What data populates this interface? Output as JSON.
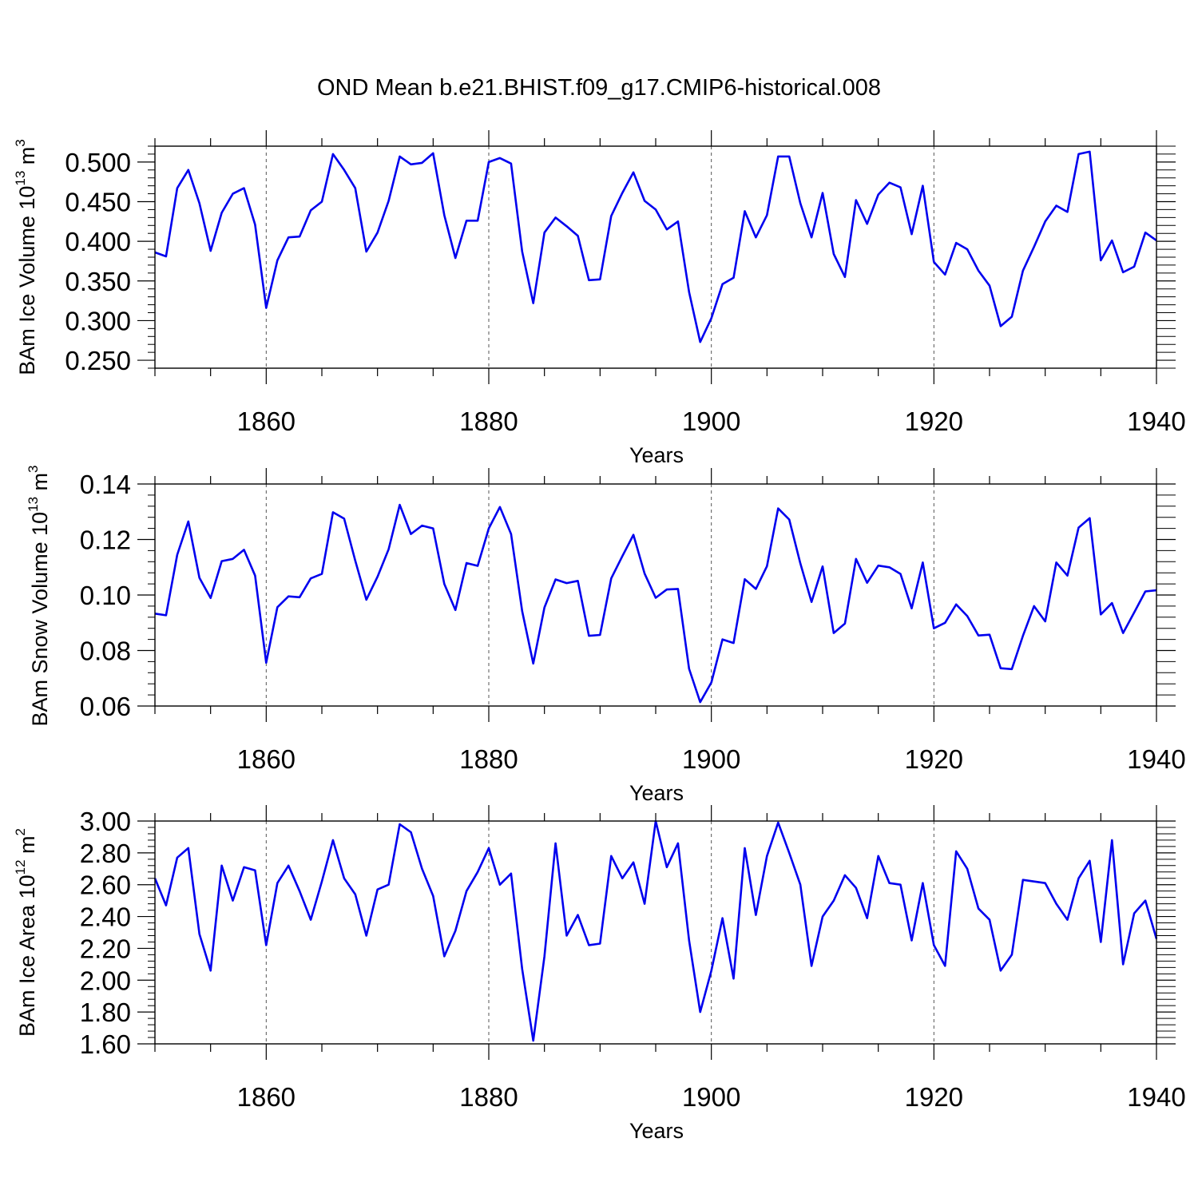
{
  "figure_title": "OND Mean b.e21.BHIST.f09_g17.CMIP6-historical.008",
  "colors": {
    "line": "#0000ee",
    "axis": "#000000",
    "grid": "#555555",
    "background": "#ffffff"
  },
  "chart_data": [
    {
      "type": "line",
      "id": "ice-volume",
      "ylabel_parts": {
        "base": "BAm Ice Volume 10",
        "exp1": "13",
        "mid": " m",
        "exp2": "3"
      },
      "xlabel": "Years",
      "xlim": [
        1850,
        1940
      ],
      "ylim": [
        0.24,
        0.52
      ],
      "yticks": [
        0.25,
        0.3,
        0.35,
        0.4,
        0.45,
        0.5
      ],
      "ytick_labels": [
        "0.250",
        "0.300",
        "0.350",
        "0.400",
        "0.450",
        "0.500"
      ],
      "xticks": [
        1860,
        1880,
        1900,
        1920,
        1940
      ],
      "xtick_labels": [
        "1860",
        "1880",
        "1900",
        "1920",
        "1940"
      ],
      "start_year": 1850,
      "values": [
        0.386,
        0.381,
        0.467,
        0.49,
        0.448,
        0.388,
        0.436,
        0.46,
        0.467,
        0.421,
        0.316,
        0.376,
        0.405,
        0.406,
        0.439,
        0.45,
        0.51,
        0.49,
        0.467,
        0.387,
        0.411,
        0.451,
        0.507,
        0.497,
        0.499,
        0.511,
        0.433,
        0.379,
        0.426,
        0.426,
        0.5,
        0.505,
        0.498,
        0.387,
        0.322,
        0.411,
        0.43,
        0.419,
        0.407,
        0.351,
        0.352,
        0.432,
        0.461,
        0.487,
        0.451,
        0.44,
        0.415,
        0.425,
        0.336,
        0.273,
        0.303,
        0.346,
        0.354,
        0.438,
        0.405,
        0.433,
        0.507,
        0.507,
        0.448,
        0.405,
        0.461,
        0.384,
        0.355,
        0.452,
        0.422,
        0.459,
        0.474,
        0.468,
        0.409,
        0.47,
        0.374,
        0.358,
        0.398,
        0.39,
        0.363,
        0.344,
        0.293,
        0.305,
        0.363,
        0.393,
        0.425,
        0.445,
        0.437,
        0.51,
        0.513,
        0.376,
        0.401,
        0.361,
        0.368,
        0.411,
        0.401
      ]
    },
    {
      "type": "line",
      "id": "snow-volume",
      "ylabel_parts": {
        "base": "BAm Snow Volume 10",
        "exp1": "13",
        "mid": " m",
        "exp2": "3"
      },
      "xlabel": "Years",
      "xlim": [
        1850,
        1940
      ],
      "ylim": [
        0.06,
        0.14
      ],
      "yticks": [
        0.06,
        0.08,
        0.1,
        0.12,
        0.14
      ],
      "ytick_labels": [
        "0.06",
        "0.08",
        "0.10",
        "0.12",
        "0.14"
      ],
      "xticks": [
        1860,
        1880,
        1900,
        1920,
        1940
      ],
      "xtick_labels": [
        "1860",
        "1880",
        "1900",
        "1920",
        "1940"
      ],
      "start_year": 1850,
      "values": [
        0.0933,
        0.0927,
        0.1145,
        0.1265,
        0.1062,
        0.0989,
        0.1122,
        0.113,
        0.1163,
        0.107,
        0.0756,
        0.0956,
        0.0995,
        0.0992,
        0.106,
        0.1076,
        0.1298,
        0.1275,
        0.1124,
        0.0983,
        0.1066,
        0.1165,
        0.1325,
        0.122,
        0.125,
        0.124,
        0.104,
        0.0946,
        0.1115,
        0.1105,
        0.124,
        0.1317,
        0.122,
        0.0942,
        0.0753,
        0.0955,
        0.1056,
        0.1043,
        0.1051,
        0.0853,
        0.0856,
        0.106,
        0.114,
        0.1217,
        0.1077,
        0.099,
        0.102,
        0.1022,
        0.0734,
        0.0614,
        0.0685,
        0.084,
        0.0827,
        0.1057,
        0.1022,
        0.1104,
        0.1312,
        0.1272,
        0.1114,
        0.0975,
        0.1103,
        0.0863,
        0.0897,
        0.113,
        0.1044,
        0.1106,
        0.11,
        0.1076,
        0.0952,
        0.1117,
        0.088,
        0.09,
        0.0966,
        0.0924,
        0.0854,
        0.0857,
        0.0736,
        0.0733,
        0.0853,
        0.096,
        0.0905,
        0.1117,
        0.107,
        0.1243,
        0.1277,
        0.093,
        0.0971,
        0.0863,
        0.0937,
        0.1013,
        0.1017
      ]
    },
    {
      "type": "line",
      "id": "ice-area",
      "ylabel_parts": {
        "base": "BAm Ice Area 10",
        "exp1": "12",
        "mid": " m",
        "exp2": "2"
      },
      "xlabel": "Years",
      "xlim": [
        1850,
        1940
      ],
      "ylim": [
        1.6,
        3.0
      ],
      "yticks": [
        1.6,
        1.8,
        2.0,
        2.2,
        2.4,
        2.6,
        2.8,
        3.0
      ],
      "ytick_labels": [
        "1.60",
        "1.80",
        "2.00",
        "2.20",
        "2.40",
        "2.60",
        "2.80",
        "3.00"
      ],
      "xticks": [
        1860,
        1880,
        1900,
        1920,
        1940
      ],
      "xtick_labels": [
        "1860",
        "1880",
        "1900",
        "1920",
        "1940"
      ],
      "start_year": 1850,
      "values": [
        2.64,
        2.47,
        2.77,
        2.83,
        2.29,
        2.06,
        2.72,
        2.5,
        2.71,
        2.69,
        2.22,
        2.61,
        2.72,
        2.56,
        2.38,
        2.62,
        2.88,
        2.64,
        2.54,
        2.28,
        2.57,
        2.6,
        2.98,
        2.93,
        2.7,
        2.53,
        2.15,
        2.31,
        2.56,
        2.68,
        2.83,
        2.6,
        2.67,
        2.07,
        1.62,
        2.15,
        2.86,
        2.28,
        2.41,
        2.22,
        2.23,
        2.78,
        2.64,
        2.74,
        2.48,
        3.0,
        2.71,
        2.86,
        2.25,
        1.8,
        2.06,
        2.39,
        2.01,
        2.83,
        2.41,
        2.78,
        2.99,
        2.8,
        2.6,
        2.09,
        2.4,
        2.5,
        2.66,
        2.58,
        2.39,
        2.78,
        2.61,
        2.6,
        2.25,
        2.61,
        2.22,
        2.09,
        2.81,
        2.7,
        2.45,
        2.38,
        2.06,
        2.16,
        2.63,
        2.62,
        2.61,
        2.48,
        2.38,
        2.64,
        2.75,
        2.24,
        2.88,
        2.1,
        2.42,
        2.5,
        2.26
      ]
    }
  ]
}
